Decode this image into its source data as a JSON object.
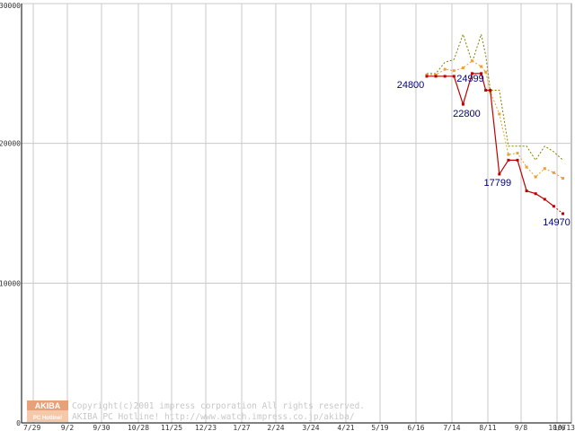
{
  "chart_data": {
    "type": "line",
    "title": "",
    "xlabel": "",
    "ylabel": "",
    "ylim": [
      0,
      30000
    ],
    "y_ticks": [
      "0",
      "10000",
      "20000",
      "30000"
    ],
    "x_ticks": [
      "7/29",
      "9/2",
      "9/30",
      "10/28",
      "11/25",
      "12/23",
      "1/27",
      "2/24",
      "3/24",
      "4/21",
      "5/19",
      "6/16",
      "7/14",
      "8/11",
      "9/8",
      "10/6",
      "10/13"
    ],
    "grid": true,
    "legend": "none",
    "colors": {
      "min": "#c00000",
      "avg": "#f0a030",
      "max": "#808000"
    },
    "series": [
      {
        "key": "max",
        "x": [
          0.0,
          1.0,
          2.0,
          3.0,
          4.0,
          5.0,
          6.0,
          6.5,
          7.0,
          8.0,
          9.0,
          10.0,
          11.0,
          12.0,
          13.0,
          14.0,
          15.0
        ],
        "values": [
          25000,
          25000,
          25800,
          26000,
          27800,
          25800,
          27800,
          26300,
          23800,
          23800,
          19800,
          19800,
          19800,
          18800,
          19800,
          19400,
          18800
        ]
      },
      {
        "key": "avg",
        "x": [
          0.0,
          1.0,
          2.0,
          3.0,
          4.0,
          5.0,
          6.0,
          6.5,
          7.0,
          8.0,
          9.0,
          10.0,
          11.0,
          12.0,
          13.0,
          14.0,
          15.0
        ],
        "values": [
          24900,
          24900,
          25300,
          25200,
          25400,
          25900,
          25500,
          25100,
          23700,
          22100,
          19200,
          19300,
          18300,
          17600,
          18200,
          17900,
          17500
        ]
      },
      {
        "key": "min",
        "x": [
          0.0,
          1.0,
          2.0,
          3.0,
          4.0,
          5.0,
          6.0,
          6.5,
          7.0,
          8.0,
          9.0,
          10.0,
          11.0,
          12.0,
          13.0,
          14.0,
          15.0
        ],
        "values": [
          24800,
          24800,
          24800,
          24800,
          22800,
          24999,
          24999,
          23800,
          23800,
          17799,
          18800,
          18800,
          16600,
          16400,
          16000,
          15500,
          14970
        ]
      }
    ],
    "data_labels": [
      {
        "text": "24800",
        "x": 0.0,
        "value": 24800
      },
      {
        "text": "24999",
        "x": 5.0,
        "value": 24999
      },
      {
        "text": "22800",
        "x": 4.0,
        "value": 22800
      },
      {
        "text": "17799",
        "x": 8.0,
        "value": 17799
      },
      {
        "text": "14970",
        "x": 15.0,
        "value": 14970
      }
    ]
  },
  "watermark": {
    "logo_top": "AKIBA",
    "logo_bottom": "PC Hotline!",
    "line1": "Copyright(c)2001 impress corporation All rights reserved.",
    "line2": "AKIBA PC Hotline!  http://www.watch.impress.co.jp/akiba/"
  }
}
